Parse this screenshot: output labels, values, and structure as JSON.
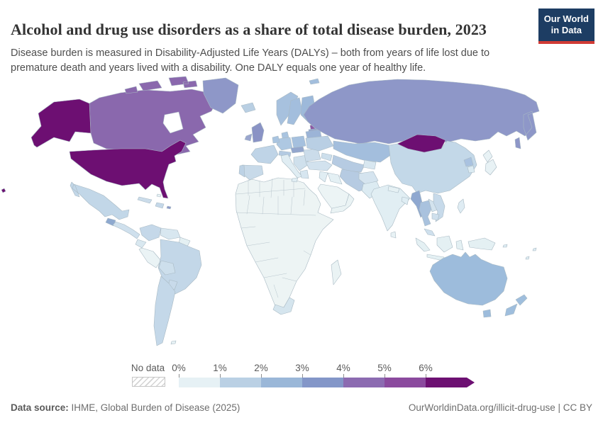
{
  "header": {
    "title": "Alcohol and drug use disorders as a share of total disease burden, 2023",
    "subtitle": "Disease burden is measured in Disability-Adjusted Life Years (DALYs) – both from years of life lost due to premature death and years lived with a disability. One DALY equals one year of healthy life.",
    "logo": {
      "line1": "Our World",
      "line2": "in Data",
      "bg_color": "#1d3d63",
      "accent_color": "#d13b35"
    }
  },
  "legend": {
    "no_data_label": "No data",
    "ticks": [
      "0%",
      "1%",
      "2%",
      "3%",
      "4%",
      "5%",
      "6%"
    ],
    "colors": [
      "#e6f1f5",
      "#bad0e4",
      "#9ab7d8",
      "#8396c8",
      "#8c6bb1",
      "#8b4a9e",
      "#6d1072"
    ]
  },
  "footer": {
    "source_label": "Data source:",
    "source_value": "IHME, Global Burden of Disease (2025)",
    "right_text": "OurWorldinData.org/illicit-drug-use | CC BY"
  },
  "map": {
    "border_color": "#a9bac4",
    "inner_border_color": "#b7c5cd",
    "region_colors": {
      "alaska": "#6d0f72",
      "usa": "#6d0f72",
      "hawaii": "#6d0f72",
      "mongolia": "#6d0f72",
      "canada": "#8a68ad",
      "canada_islands": "#8a68ad",
      "greenland": "#8e97c8",
      "russia": "#8e97c8",
      "estonia": "#8d58a5",
      "uk": "#8a93c5",
      "ireland": "#9aa6ce",
      "czech_slovakia": "#93a6cd",
      "baltics": "#93a4cd",
      "myanmar": "#8fa8d0",
      "guatemala": "#8ea9cf",
      "puerto_rico": "#8e9cc9",
      "belarus": "#9cb4d7",
      "finland": "#9db9da",
      "australia": "#9dbcdc",
      "tasmania": "#9dbcdc",
      "new_zealand": "#9fbedd",
      "kazakhstan": "#a3bedd",
      "sweden": "#a3bedd",
      "svalbard": "#a3bedd",
      "poland": "#a5c0de",
      "norway": "#a7c1de",
      "denmark": "#a9c4e0",
      "benelux": "#a9c4e0",
      "north_korea": "#a9c2e0",
      "thailand": "#a9c2de",
      "germany": "#aec8e2",
      "alpine": "#b3cae2",
      "iran": "#b6cbe2",
      "central_asia": "#b6cbe2",
      "iceland": "#b9cfe3",
      "ukraine": "#b9cfe4",
      "portugal": "#bdd2e5",
      "france": "#bfd4e7",
      "mexico": "#c2d7e8",
      "china": "#c3d8e8",
      "brazil": "#c3d7e8",
      "argentina_chile": "#c4d8e9",
      "colombia": "#c5d8e9",
      "hispaniola": "#c5d8e9",
      "spain": "#c8dae9",
      "paraguay_uruguay": "#c8daea",
      "vietnam": "#c7daea",
      "cuba": "#cbdcea",
      "romania_bulgaria": "#cbdcea",
      "bolivia": "#cddfec",
      "caucasus": "#cddfec",
      "central_america": "#cfe0ed",
      "cambodia": "#cfe0ed",
      "malaysia": "#cfe0ed",
      "balkans": "#cfe0ec",
      "turkey": "#d2e2ee",
      "laos": "#d3e3ee",
      "afghanistan": "#d5e4ef",
      "south_africa": "#d5e5ee",
      "greece": "#d7e6f0",
      "venezuela": "#d8e7f0",
      "kyrgyz_tajik": "#d8e7f0",
      "ecuador": "#d9e8f0",
      "pakistan": "#dcebf2",
      "south_korea": "#dcebf2",
      "pacific_islands": "#dcebf2",
      "philippines": "#dfecf3",
      "bangladesh": "#dfedf3",
      "italy": "#e0edf3",
      "levant": "#e0edf3",
      "india": "#e1eef3",
      "guyanas": "#e4f0f3",
      "indonesia": "#e4f0f3",
      "new_guinea": "#e4f0f3",
      "iraq": "#e4f0f4",
      "nepal": "#e6f1f4",
      "bahamas": "#e6f1f4",
      "falklands": "#e6f1f4",
      "japan": "#e8f2f5",
      "sri_lanka": "#e8f2f5",
      "peru": "#eaf3f5",
      "madagascar": "#eaf3f4",
      "yemen_oman": "#eaf3f4",
      "saudi": "#ecf4f5",
      "africa": "#edf4f4"
    }
  }
}
